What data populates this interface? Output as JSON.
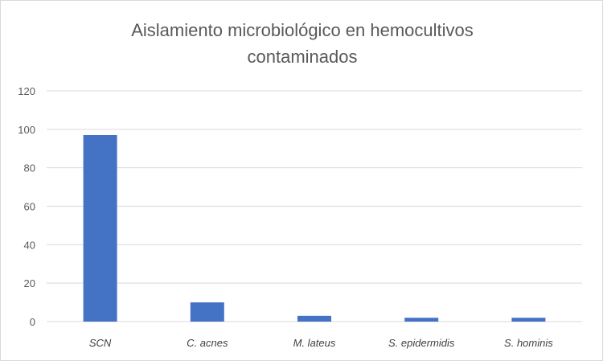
{
  "chart_data": {
    "type": "bar",
    "title_line1": "Aislamiento microbiológico en hemocultivos",
    "title_line2": "contaminados",
    "categories": [
      "SCN",
      "C. acnes",
      "M. lateus",
      "S. epidermidis",
      "S. hominis"
    ],
    "values": [
      97,
      10,
      3,
      2,
      2
    ],
    "ylim": [
      0,
      120
    ],
    "yticks": [
      "0",
      "20",
      "40",
      "60",
      "80",
      "100",
      "120"
    ],
    "grid": true,
    "legend": "none",
    "bar_color": "#4472c4",
    "grid_color": "#d9d9d9"
  }
}
